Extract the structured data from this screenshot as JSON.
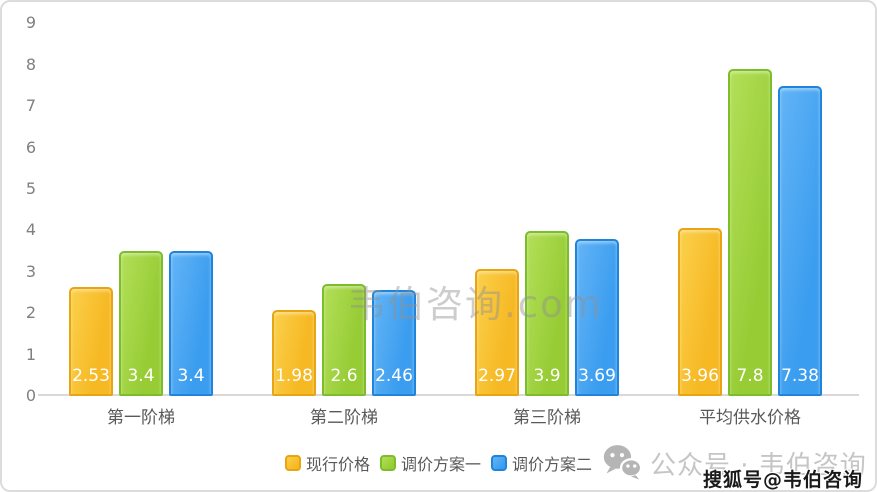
{
  "card": {
    "background": "#ffffff",
    "border_color": "#dcdcdc"
  },
  "chart_data": {
    "type": "bar",
    "title": "",
    "categories": [
      "第一阶梯",
      "第二阶梯",
      "第三阶梯",
      "平均供水价格"
    ],
    "series": [
      {
        "name": "现行价格",
        "values": [
          2.53,
          1.98,
          2.97,
          3.96
        ],
        "labels": [
          "2.53",
          "1.98",
          "2.97",
          "3.96"
        ],
        "color": "#F6B823",
        "color_light": "#FBD04B",
        "border_color": "#E8A511"
      },
      {
        "name": "调价方案一",
        "values": [
          3.4,
          2.6,
          3.9,
          7.8
        ],
        "labels": [
          "3.4",
          "2.6",
          "3.9",
          "7.8"
        ],
        "color": "#97CC35",
        "color_light": "#B2DF58",
        "border_color": "#7CBE2A"
      },
      {
        "name": "调价方案二",
        "values": [
          3.4,
          2.46,
          3.69,
          7.38
        ],
        "labels": [
          "3.4",
          "2.46",
          "3.69",
          "7.38"
        ],
        "color": "#3B9DEF",
        "color_light": "#63B4F6",
        "border_color": "#1E84DC"
      }
    ],
    "ylim": [
      0,
      9
    ],
    "y_ticks": [
      0,
      1,
      2,
      3,
      4,
      5,
      6,
      7,
      8,
      9
    ],
    "grid": false,
    "legend_position": "bottom",
    "axis_color": "#d9d9d9",
    "tick_label_color": "#808080",
    "category_label_color": "#595959",
    "value_label_color": "#ffffff"
  },
  "watermarks": {
    "center": "韦伯咨询.com",
    "official_account": "公众号 · 韦伯咨询",
    "sohu": "搜狐号@韦伯咨询",
    "wechat_icon": "wechat-icon",
    "gray_color": "#bdbdbd"
  }
}
